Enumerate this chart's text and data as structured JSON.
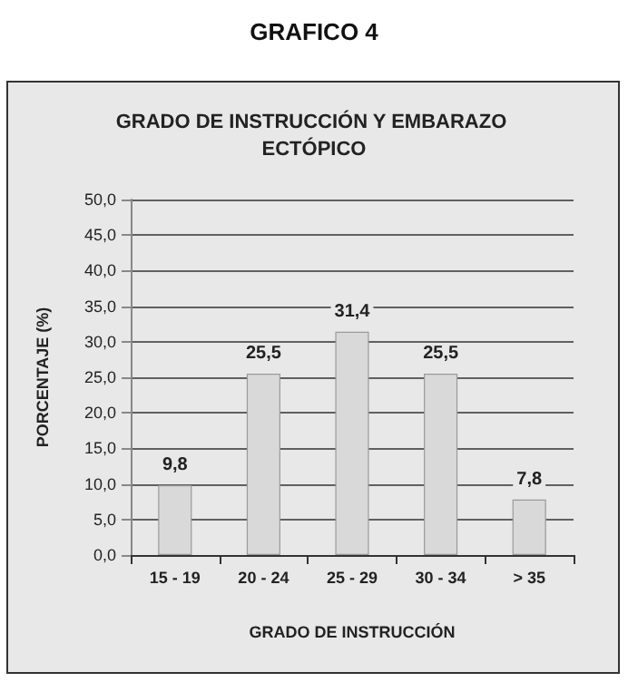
{
  "chart_data": {
    "type": "bar",
    "title": "GRAFICO 4",
    "subtitle": "GRADO DE INSTRUCCIÓN Y EMBARAZO ECTÓPICO",
    "xlabel": "GRADO DE INSTRUCCIÓN",
    "ylabel": "PORCENTAJE (%)",
    "categories": [
      "15 - 19",
      "20 - 24",
      "25 - 29",
      "30 - 34",
      "> 35"
    ],
    "values": [
      9.8,
      25.5,
      31.4,
      25.5,
      7.8
    ],
    "value_labels": [
      "9,8",
      "25,5",
      "31,4",
      "25,5",
      "7,8"
    ],
    "color": "#d9d9d9",
    "ylim": [
      0,
      50
    ],
    "yticks": [
      {
        "value": 0,
        "label": "0,0"
      },
      {
        "value": 5,
        "label": "5,0"
      },
      {
        "value": 10,
        "label": "10,0"
      },
      {
        "value": 15,
        "label": "15,0"
      },
      {
        "value": 20,
        "label": "20,0"
      },
      {
        "value": 25,
        "label": "25,0"
      },
      {
        "value": 30,
        "label": "30,0"
      },
      {
        "value": 35,
        "label": "35,0"
      },
      {
        "value": 40,
        "label": "40,0"
      },
      {
        "value": 45,
        "label": "45,0"
      },
      {
        "value": 50,
        "label": "50,0"
      }
    ],
    "grid": "y"
  }
}
